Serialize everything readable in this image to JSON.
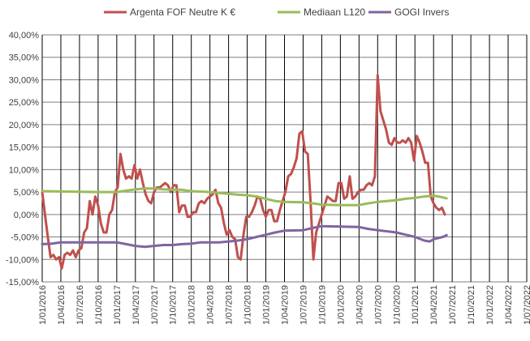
{
  "chart_data": {
    "type": "line",
    "title": "",
    "xlabel": "",
    "ylabel": "",
    "legend_position": "top",
    "grid": true,
    "ylim": [
      -0.15,
      0.4
    ],
    "y_ticks": [
      -0.15,
      -0.1,
      -0.05,
      0.0,
      0.05,
      0.1,
      0.15,
      0.2,
      0.25,
      0.3,
      0.35,
      0.4
    ],
    "y_tick_labels": [
      "-15,00%",
      "-10,00%",
      "-5,00%",
      "0,00%",
      "5,00%",
      "10,00%",
      "15,00%",
      "20,00%",
      "25,00%",
      "30,00%",
      "35,00%",
      "40,00%"
    ],
    "x_tick_labels": [
      "1/01/2016",
      "1/04/2016",
      "1/07/2016",
      "1/10/2016",
      "1/01/2017",
      "1/04/2017",
      "1/07/2017",
      "1/10/2017",
      "1/01/2018",
      "1/04/2018",
      "1/07/2018",
      "1/10/2018",
      "1/01/2019",
      "1/04/2019",
      "1/07/2019",
      "1/10/2019",
      "1/01/2020",
      "1/04/2020",
      "1/07/2020",
      "1/10/2020",
      "1/01/2021",
      "1/04/2021",
      "1/07/2021",
      "1/10/2021",
      "1/01/2022",
      "1/04/2022",
      "1/07/2022"
    ],
    "x_range": [
      0,
      26
    ],
    "series": [
      {
        "name": "Argenta FOF Neutre K €",
        "color": "#c0504d",
        "points": [
          [
            0.0,
            0.05
          ],
          [
            0.15,
            0.0
          ],
          [
            0.3,
            -0.05
          ],
          [
            0.45,
            -0.095
          ],
          [
            0.6,
            -0.09
          ],
          [
            0.75,
            -0.1
          ],
          [
            0.9,
            -0.095
          ],
          [
            1.05,
            -0.12
          ],
          [
            1.2,
            -0.09
          ],
          [
            1.35,
            -0.085
          ],
          [
            1.5,
            -0.09
          ],
          [
            1.65,
            -0.08
          ],
          [
            1.8,
            -0.095
          ],
          [
            1.95,
            -0.08
          ],
          [
            2.1,
            -0.075
          ],
          [
            2.25,
            -0.04
          ],
          [
            2.4,
            -0.03
          ],
          [
            2.55,
            0.03
          ],
          [
            2.7,
            0.0
          ],
          [
            2.85,
            0.04
          ],
          [
            3.0,
            0.02
          ],
          [
            3.15,
            -0.02
          ],
          [
            3.3,
            -0.04
          ],
          [
            3.45,
            -0.04
          ],
          [
            3.6,
            0.0
          ],
          [
            3.75,
            0.01
          ],
          [
            3.9,
            0.05
          ],
          [
            4.05,
            0.06
          ],
          [
            4.2,
            0.135
          ],
          [
            4.35,
            0.1
          ],
          [
            4.5,
            0.08
          ],
          [
            4.65,
            0.085
          ],
          [
            4.8,
            0.08
          ],
          [
            4.95,
            0.11
          ],
          [
            5.1,
            0.08
          ],
          [
            5.25,
            0.1
          ],
          [
            5.4,
            0.07
          ],
          [
            5.55,
            0.045
          ],
          [
            5.7,
            0.03
          ],
          [
            5.85,
            0.025
          ],
          [
            6.0,
            0.05
          ],
          [
            6.15,
            0.06
          ],
          [
            6.3,
            0.06
          ],
          [
            6.45,
            0.065
          ],
          [
            6.6,
            0.07
          ],
          [
            6.75,
            0.065
          ],
          [
            6.9,
            0.05
          ],
          [
            7.05,
            0.065
          ],
          [
            7.2,
            0.065
          ],
          [
            7.35,
            0.005
          ],
          [
            7.5,
            0.02
          ],
          [
            7.65,
            0.02
          ],
          [
            7.8,
            -0.005
          ],
          [
            7.95,
            -0.005
          ],
          [
            8.1,
            0.005
          ],
          [
            8.25,
            0.005
          ],
          [
            8.4,
            0.025
          ],
          [
            8.55,
            0.03
          ],
          [
            8.7,
            0.025
          ],
          [
            8.85,
            0.035
          ],
          [
            9.0,
            0.04
          ],
          [
            9.15,
            0.045
          ],
          [
            9.3,
            0.055
          ],
          [
            9.45,
            0.025
          ],
          [
            9.6,
            0.015
          ],
          [
            9.75,
            -0.02
          ],
          [
            9.9,
            -0.045
          ],
          [
            10.05,
            -0.035
          ],
          [
            10.2,
            -0.05
          ],
          [
            10.35,
            -0.055
          ],
          [
            10.5,
            -0.095
          ],
          [
            10.65,
            -0.1
          ],
          [
            10.8,
            -0.045
          ],
          [
            10.95,
            -0.005
          ],
          [
            11.1,
            -0.005
          ],
          [
            11.25,
            0.005
          ],
          [
            11.4,
            0.02
          ],
          [
            11.55,
            0.04
          ],
          [
            11.7,
            0.035
          ],
          [
            11.85,
            0.01
          ],
          [
            12.0,
            -0.005
          ],
          [
            12.15,
            0.01
          ],
          [
            12.3,
            0.01
          ],
          [
            12.45,
            -0.015
          ],
          [
            12.6,
            -0.015
          ],
          [
            12.75,
            0.01
          ],
          [
            12.9,
            0.03
          ],
          [
            13.05,
            0.05
          ],
          [
            13.2,
            0.085
          ],
          [
            13.35,
            0.09
          ],
          [
            13.5,
            0.105
          ],
          [
            13.65,
            0.125
          ],
          [
            13.8,
            0.18
          ],
          [
            13.95,
            0.185
          ],
          [
            14.1,
            0.14
          ],
          [
            14.25,
            0.135
          ],
          [
            14.4,
            0.03
          ],
          [
            14.55,
            -0.1
          ],
          [
            14.7,
            -0.04
          ],
          [
            14.85,
            -0.02
          ],
          [
            15.0,
            0.0
          ],
          [
            15.15,
            0.02
          ],
          [
            15.3,
            0.04
          ],
          [
            15.45,
            0.035
          ],
          [
            15.6,
            0.03
          ],
          [
            15.75,
            0.03
          ],
          [
            15.9,
            0.07
          ],
          [
            16.05,
            0.07
          ],
          [
            16.2,
            0.035
          ],
          [
            16.35,
            0.04
          ],
          [
            16.5,
            0.085
          ],
          [
            16.65,
            0.035
          ],
          [
            16.8,
            0.04
          ],
          [
            16.95,
            0.05
          ],
          [
            17.1,
            0.055
          ],
          [
            17.25,
            0.055
          ],
          [
            17.4,
            0.065
          ],
          [
            17.55,
            0.07
          ],
          [
            17.7,
            0.065
          ],
          [
            17.85,
            0.085
          ],
          [
            18.0,
            0.31
          ],
          [
            18.15,
            0.23
          ],
          [
            18.3,
            0.21
          ],
          [
            18.45,
            0.19
          ],
          [
            18.6,
            0.16
          ],
          [
            18.75,
            0.155
          ],
          [
            18.9,
            0.17
          ],
          [
            19.05,
            0.16
          ],
          [
            19.2,
            0.16
          ],
          [
            19.35,
            0.165
          ],
          [
            19.5,
            0.16
          ],
          [
            19.65,
            0.17
          ],
          [
            19.8,
            0.16
          ],
          [
            19.95,
            0.12
          ],
          [
            20.1,
            0.175
          ],
          [
            20.25,
            0.16
          ],
          [
            20.4,
            0.14
          ],
          [
            20.55,
            0.115
          ],
          [
            20.7,
            0.115
          ],
          [
            20.85,
            0.04
          ],
          [
            21.0,
            0.025
          ],
          [
            21.15,
            0.015
          ],
          [
            21.3,
            0.01
          ],
          [
            21.45,
            0.015
          ],
          [
            21.6,
            0.0
          ]
        ]
      },
      {
        "name": "Mediaan L120",
        "color": "#9bbb59",
        "points": [
          [
            0.0,
            0.052
          ],
          [
            3.0,
            0.05
          ],
          [
            4.0,
            0.05
          ],
          [
            4.5,
            0.053
          ],
          [
            5.0,
            0.056
          ],
          [
            5.5,
            0.058
          ],
          [
            6.0,
            0.058
          ],
          [
            6.5,
            0.056
          ],
          [
            7.0,
            0.055
          ],
          [
            7.5,
            0.055
          ],
          [
            8.0,
            0.052
          ],
          [
            9.0,
            0.05
          ],
          [
            9.5,
            0.048
          ],
          [
            10.0,
            0.046
          ],
          [
            10.5,
            0.044
          ],
          [
            11.0,
            0.043
          ],
          [
            11.5,
            0.04
          ],
          [
            12.0,
            0.035
          ],
          [
            12.5,
            0.03
          ],
          [
            13.0,
            0.028
          ],
          [
            14.0,
            0.027
          ],
          [
            14.5,
            0.025
          ],
          [
            15.0,
            0.022
          ],
          [
            16.0,
            0.021
          ],
          [
            17.0,
            0.021
          ],
          [
            17.5,
            0.025
          ],
          [
            18.0,
            0.028
          ],
          [
            18.5,
            0.03
          ],
          [
            19.0,
            0.032
          ],
          [
            19.5,
            0.035
          ],
          [
            20.0,
            0.037
          ],
          [
            20.5,
            0.04
          ],
          [
            21.0,
            0.042
          ],
          [
            21.5,
            0.038
          ],
          [
            21.7,
            0.036
          ]
        ]
      },
      {
        "name": "GOGI Invers",
        "color": "#8064a2",
        "points": [
          [
            0.0,
            -0.066
          ],
          [
            0.5,
            -0.065
          ],
          [
            1.0,
            -0.062
          ],
          [
            2.0,
            -0.062
          ],
          [
            3.0,
            -0.062
          ],
          [
            4.0,
            -0.062
          ],
          [
            4.5,
            -0.066
          ],
          [
            5.0,
            -0.07
          ],
          [
            5.5,
            -0.072
          ],
          [
            6.0,
            -0.07
          ],
          [
            6.5,
            -0.068
          ],
          [
            7.0,
            -0.068
          ],
          [
            7.5,
            -0.066
          ],
          [
            8.0,
            -0.065
          ],
          [
            8.5,
            -0.062
          ],
          [
            9.0,
            -0.062
          ],
          [
            9.5,
            -0.062
          ],
          [
            10.0,
            -0.06
          ],
          [
            10.5,
            -0.058
          ],
          [
            11.0,
            -0.055
          ],
          [
            11.5,
            -0.05
          ],
          [
            12.0,
            -0.045
          ],
          [
            12.5,
            -0.04
          ],
          [
            13.0,
            -0.036
          ],
          [
            14.0,
            -0.035
          ],
          [
            14.5,
            -0.03
          ],
          [
            15.0,
            -0.026
          ],
          [
            16.0,
            -0.027
          ],
          [
            17.0,
            -0.028
          ],
          [
            17.5,
            -0.032
          ],
          [
            18.0,
            -0.035
          ],
          [
            19.0,
            -0.04
          ],
          [
            19.5,
            -0.045
          ],
          [
            20.0,
            -0.05
          ],
          [
            20.5,
            -0.058
          ],
          [
            20.8,
            -0.06
          ],
          [
            21.0,
            -0.055
          ],
          [
            21.5,
            -0.05
          ],
          [
            21.7,
            -0.046
          ]
        ]
      }
    ]
  }
}
